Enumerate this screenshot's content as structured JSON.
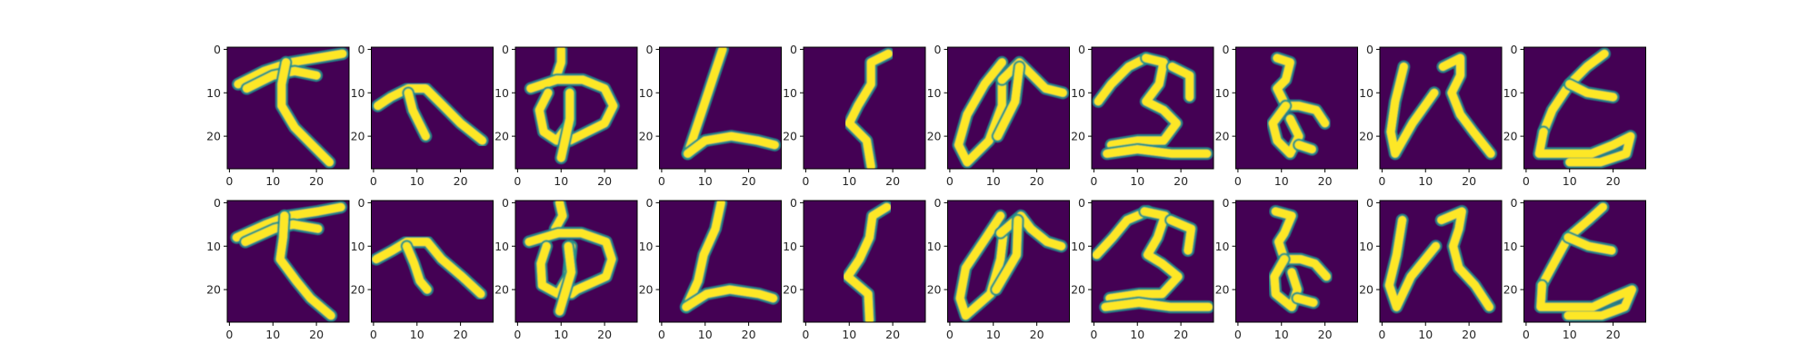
{
  "figure": {
    "description_grid": "2 rows x 10 columns of 28x28 image panels",
    "colormap": "viridis",
    "background": "#ffffff"
  },
  "chart_data": {
    "type": "heatmap",
    "rows": 2,
    "cols": 10,
    "image_size": [
      28,
      28
    ],
    "colormap": "viridis",
    "colors": {
      "low": "#440154",
      "mid": "#21918c",
      "high": "#fde725"
    },
    "xlim": [
      -0.5,
      27.5
    ],
    "ylim": [
      27.5,
      -0.5
    ],
    "xticks": [
      0,
      10,
      20
    ],
    "yticks": [
      0,
      10,
      20
    ],
    "xtick_labels": [
      "0",
      "10",
      "20"
    ],
    "ytick_labels": [
      "0",
      "10",
      "20"
    ],
    "grid": false,
    "panel_glyphs": [
      [
        [
          [
            2,
            8
          ],
          [
            8,
            5
          ],
          [
            14,
            3
          ],
          [
            20,
            2
          ],
          [
            26,
            1
          ]
        ],
        [
          [
            4,
            9
          ],
          [
            10,
            6
          ],
          [
            15,
            5
          ],
          [
            20,
            6
          ]
        ],
        [
          [
            13,
            3
          ],
          [
            12,
            8
          ],
          [
            12,
            13
          ],
          [
            15,
            18
          ],
          [
            19,
            22
          ],
          [
            23,
            26
          ]
        ]
      ],
      [
        [
          [
            1,
            13
          ],
          [
            4,
            11
          ],
          [
            8,
            9
          ],
          [
            12,
            9
          ],
          [
            16,
            13
          ],
          [
            20,
            17
          ],
          [
            25,
            21
          ]
        ],
        [
          [
            8,
            10
          ],
          [
            9,
            14
          ],
          [
            11,
            18
          ],
          [
            12,
            20
          ]
        ]
      ],
      [
        [
          [
            10,
            0
          ],
          [
            10,
            3
          ],
          [
            9,
            6
          ]
        ],
        [
          [
            3,
            9
          ],
          [
            9,
            7
          ],
          [
            15,
            7
          ],
          [
            20,
            9
          ],
          [
            22,
            13
          ],
          [
            20,
            17
          ],
          [
            14,
            20
          ],
          [
            12,
            21
          ]
        ],
        [
          [
            7,
            10
          ],
          [
            5,
            14
          ],
          [
            6,
            19
          ],
          [
            9,
            21
          ],
          [
            12,
            17
          ],
          [
            12,
            10
          ]
        ],
        [
          [
            12,
            10
          ],
          [
            12,
            16
          ],
          [
            10,
            25
          ]
        ]
      ],
      [
        [
          [
            14,
            0
          ],
          [
            12,
            6
          ],
          [
            10,
            12
          ],
          [
            8,
            18
          ],
          [
            6,
            24
          ]
        ],
        [
          [
            6,
            24
          ],
          [
            10,
            21
          ],
          [
            16,
            20
          ],
          [
            22,
            21
          ],
          [
            26,
            22
          ]
        ]
      ],
      [
        [
          [
            19,
            1
          ],
          [
            15,
            3
          ],
          [
            15,
            8
          ],
          [
            12,
            13
          ],
          [
            10,
            17
          ],
          [
            14,
            21
          ],
          [
            15,
            27
          ]
        ]
      ],
      [
        [
          [
            12,
            3
          ],
          [
            8,
            8
          ],
          [
            4,
            15
          ],
          [
            2,
            22
          ],
          [
            4,
            26
          ],
          [
            9,
            21
          ],
          [
            12,
            13
          ],
          [
            12,
            7
          ]
        ],
        [
          [
            12,
            7
          ],
          [
            16,
            3
          ],
          [
            19,
            6
          ],
          [
            22,
            9
          ],
          [
            26,
            10
          ]
        ],
        [
          [
            16,
            4
          ],
          [
            15,
            12
          ],
          [
            11,
            20
          ]
        ]
      ],
      [
        [
          [
            1,
            12
          ],
          [
            4,
            8
          ],
          [
            8,
            4
          ],
          [
            12,
            2
          ]
        ],
        [
          [
            12,
            2
          ],
          [
            16,
            3
          ],
          [
            15,
            8
          ],
          [
            12,
            12
          ],
          [
            16,
            14
          ],
          [
            19,
            17
          ],
          [
            16,
            21
          ],
          [
            10,
            21
          ],
          [
            4,
            22
          ]
        ],
        [
          [
            3,
            24
          ],
          [
            10,
            23
          ],
          [
            18,
            24
          ],
          [
            26,
            24
          ]
        ],
        [
          [
            18,
            4
          ],
          [
            22,
            6
          ],
          [
            22,
            11
          ]
        ]
      ],
      [
        [
          [
            9,
            2
          ],
          [
            12,
            3
          ],
          [
            11,
            7
          ],
          [
            9,
            9
          ],
          [
            11,
            13
          ],
          [
            14,
            13
          ],
          [
            18,
            14
          ],
          [
            20,
            17
          ]
        ],
        [
          [
            11,
            13
          ],
          [
            8,
            17
          ],
          [
            9,
            21
          ],
          [
            12,
            24
          ],
          [
            14,
            20
          ],
          [
            12,
            16
          ]
        ],
        [
          [
            14,
            22
          ],
          [
            17,
            23
          ]
        ]
      ],
      [
        [
          [
            5,
            4
          ],
          [
            3,
            12
          ],
          [
            2,
            19
          ],
          [
            3,
            24
          ],
          [
            7,
            17
          ],
          [
            12,
            10
          ]
        ],
        [
          [
            14,
            4
          ],
          [
            18,
            2
          ],
          [
            18,
            6
          ],
          [
            16,
            10
          ],
          [
            18,
            15
          ],
          [
            21,
            19
          ],
          [
            25,
            24
          ]
        ]
      ],
      [
        [
          [
            18,
            1
          ],
          [
            14,
            4
          ],
          [
            10,
            8
          ],
          [
            6,
            14
          ],
          [
            4,
            19
          ]
        ],
        [
          [
            10,
            8
          ],
          [
            14,
            10
          ],
          [
            20,
            11
          ]
        ],
        [
          [
            4,
            19
          ],
          [
            3,
            24
          ],
          [
            8,
            24
          ],
          [
            15,
            24
          ],
          [
            20,
            22
          ],
          [
            24,
            20
          ],
          [
            23,
            24
          ],
          [
            17,
            26
          ],
          [
            10,
            26
          ]
        ]
      ]
    ]
  }
}
